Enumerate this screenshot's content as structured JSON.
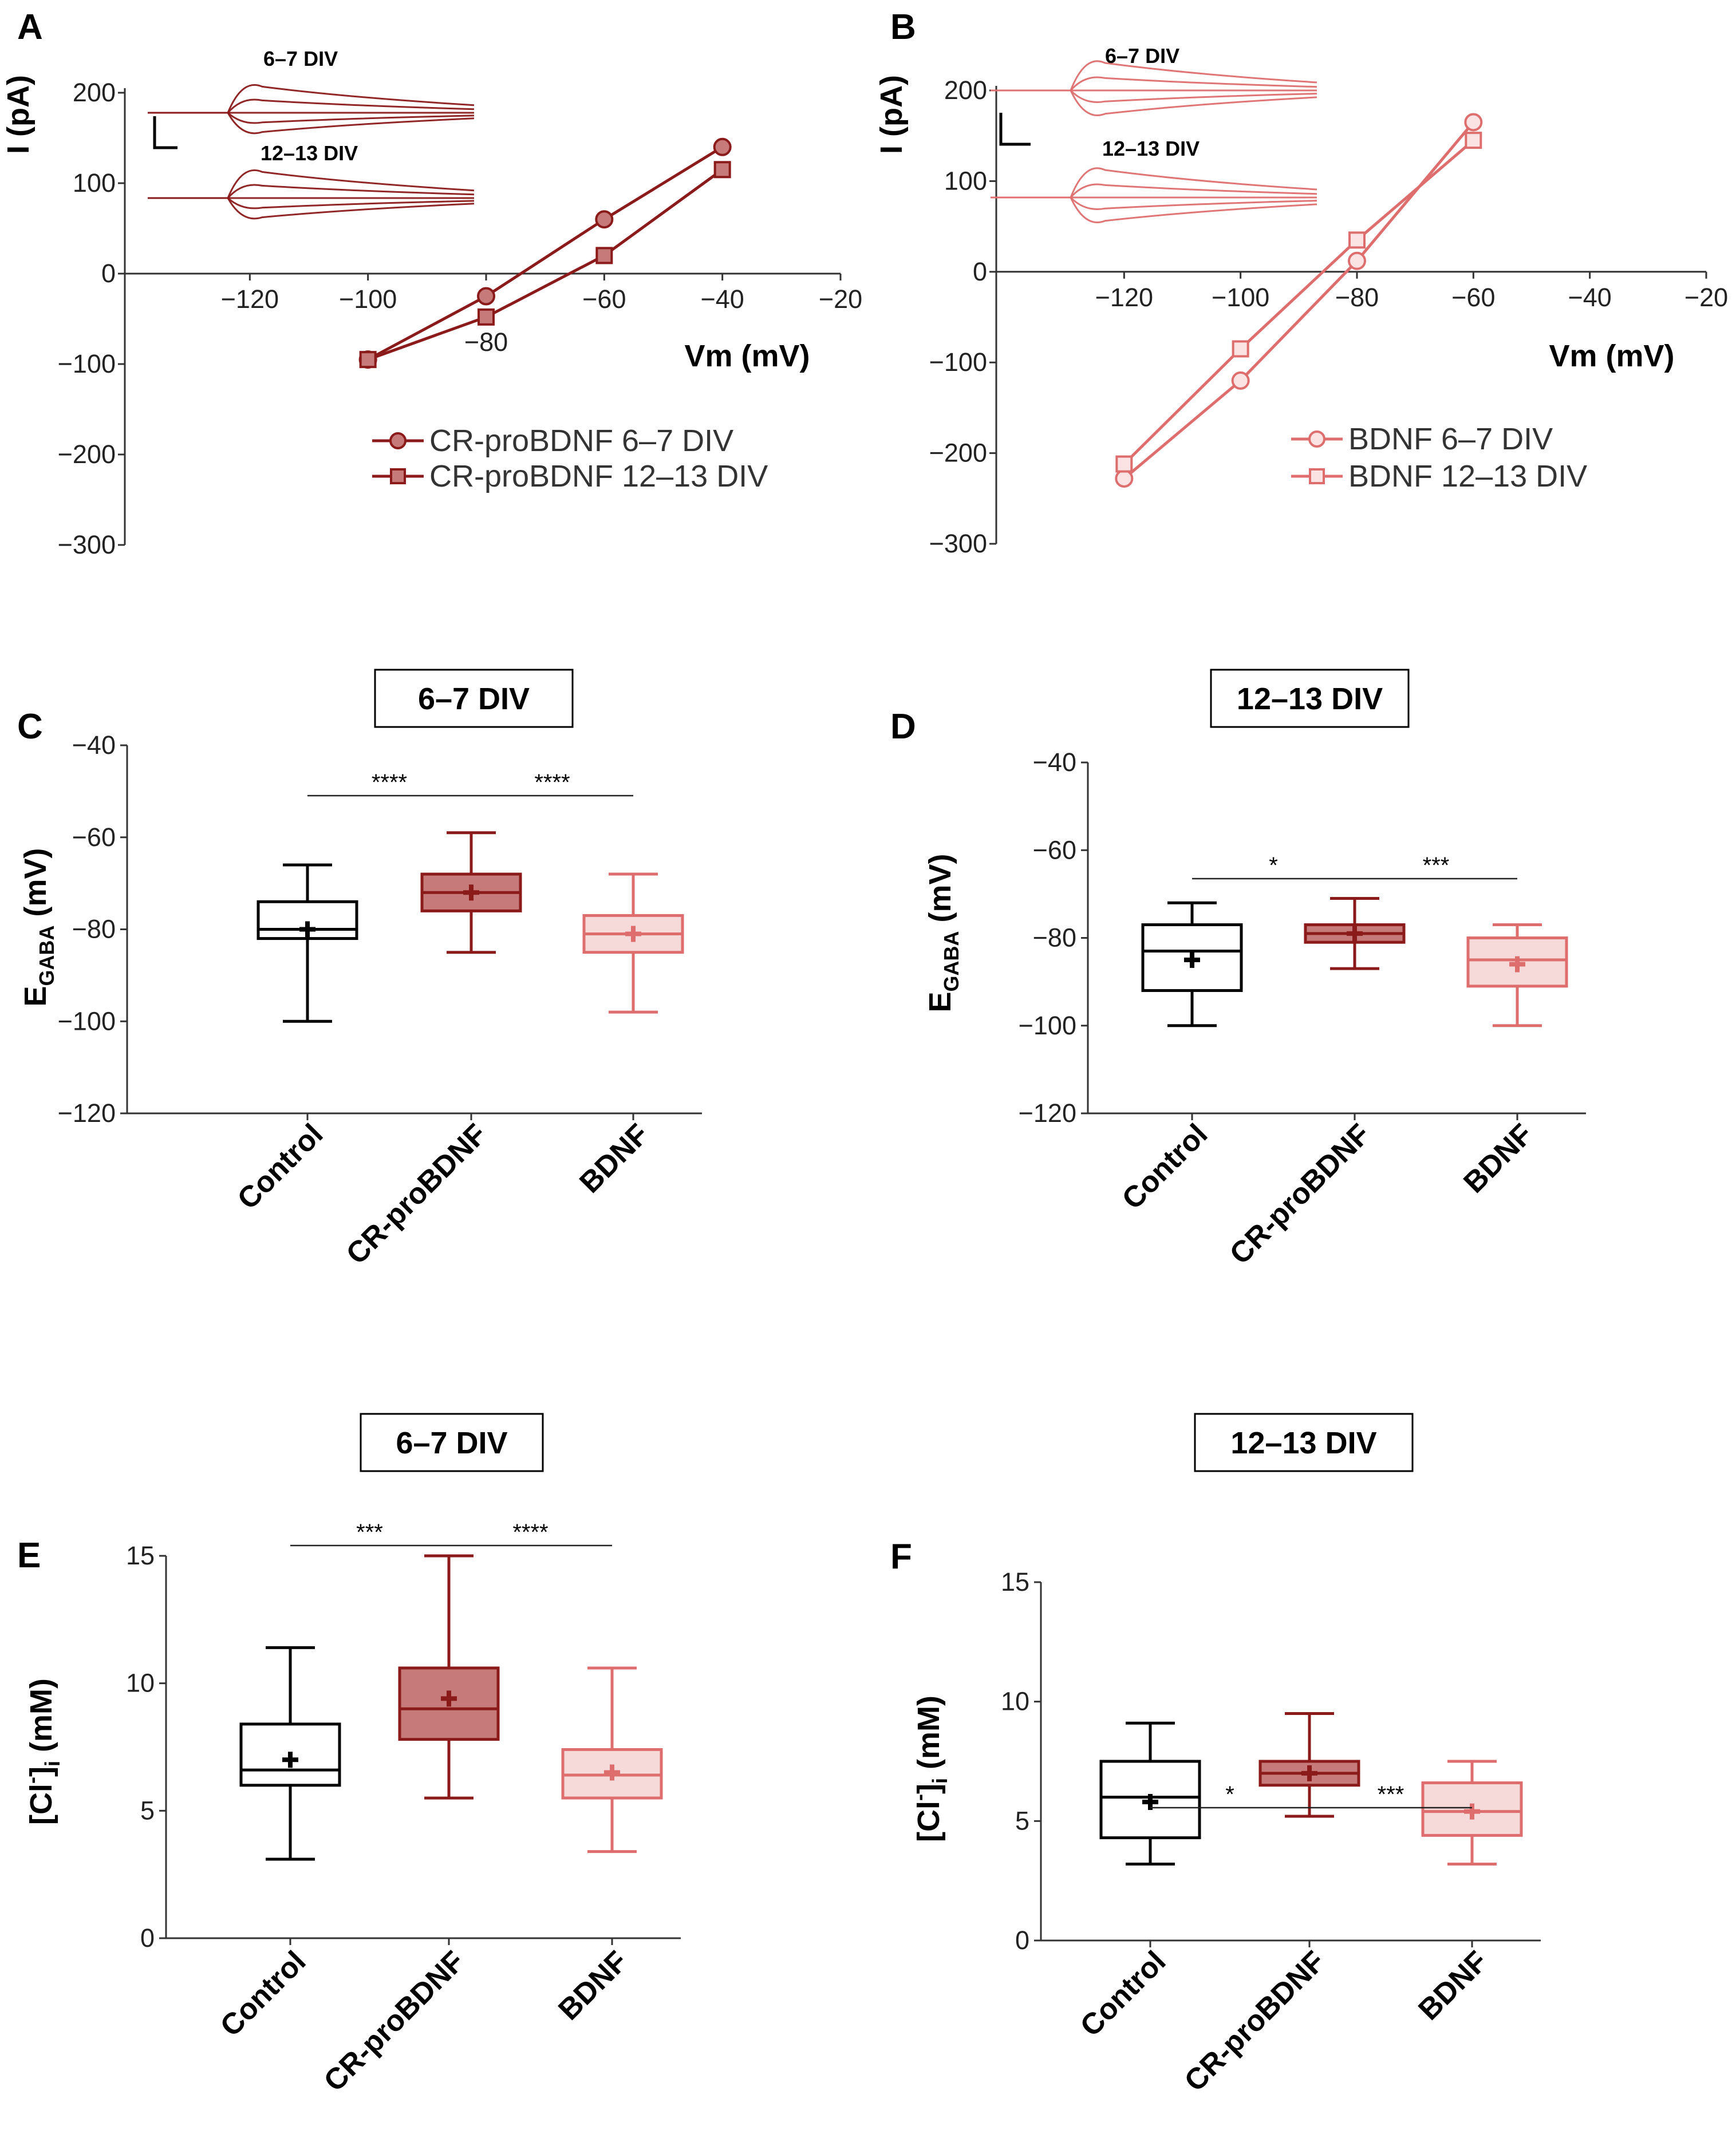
{
  "colors": {
    "control": "#000000",
    "crpro": "#8B1A1A",
    "crpro_fill": "#C77A7A",
    "bdnf": "#DE6E6E",
    "bdnf_fill": "#F6DADA",
    "black": "#000000"
  },
  "chart_data": [
    {
      "id": "A",
      "type": "line",
      "panel_label": "A",
      "xlabel": "Vm (mV)",
      "ylabel": "I (pA)",
      "xlim": [
        -140,
        -20
      ],
      "ylim": [
        -300,
        200
      ],
      "xticks": [
        -120,
        -100,
        -80,
        -60,
        -40,
        -20
      ],
      "yticks": [
        200,
        100,
        0,
        -100,
        -200,
        -300
      ],
      "series": [
        {
          "name": "CR-proBDNF 6–7 DIV",
          "marker": "circle",
          "x": [
            -100,
            -80,
            -60,
            -40
          ],
          "y": [
            -95,
            -25,
            60,
            140
          ]
        },
        {
          "name": "CR-proBDNF 12–13 DIV",
          "marker": "square",
          "x": [
            -100,
            -80,
            -60,
            -40
          ],
          "y": [
            -95,
            -48,
            20,
            115
          ]
        }
      ],
      "inset_labels": [
        "6–7 DIV",
        "12–13 DIV"
      ]
    },
    {
      "id": "B",
      "type": "line",
      "panel_label": "B",
      "xlabel": "Vm (mV)",
      "ylabel": "I (pA)",
      "xlim": [
        -140,
        -20
      ],
      "ylim": [
        -300,
        200
      ],
      "xticks": [
        -120,
        -100,
        -80,
        -60,
        -40,
        -20
      ],
      "yticks": [
        200,
        100,
        0,
        -100,
        -200,
        -300
      ],
      "series": [
        {
          "name": "BDNF 6–7 DIV",
          "marker": "circle",
          "x": [
            -120,
            -100,
            -80,
            -60
          ],
          "y": [
            -228,
            -120,
            12,
            165
          ]
        },
        {
          "name": "BDNF 12–13 DIV",
          "marker": "square",
          "x": [
            -120,
            -100,
            -80,
            -60
          ],
          "y": [
            -212,
            -85,
            35,
            145
          ]
        }
      ],
      "inset_labels": [
        "6–7 DIV",
        "12–13 DIV"
      ]
    },
    {
      "id": "C",
      "type": "box",
      "panel_label": "C",
      "header": "6–7 DIV",
      "ylabel_main": "E",
      "ylabel_sub": "GABA",
      "ylabel_unit": " (mV)",
      "ylim": [
        -120,
        -40
      ],
      "yticks": [
        -40,
        -60,
        -80,
        -100,
        -120
      ],
      "categories": [
        "Control",
        "CR-proBDNF",
        "BDNF"
      ],
      "boxes": [
        {
          "min": -100,
          "q1": -82,
          "median": -80,
          "q3": -74,
          "max": -66,
          "mean": -80
        },
        {
          "min": -85,
          "q1": -76,
          "median": -72,
          "q3": -68,
          "max": -59,
          "mean": -72
        },
        {
          "min": -98,
          "q1": -85,
          "median": -81,
          "q3": -77,
          "max": -68,
          "mean": -81
        }
      ],
      "significance": [
        {
          "from": 0,
          "to": 1,
          "label": "****"
        },
        {
          "from": 1,
          "to": 2,
          "label": "****"
        }
      ]
    },
    {
      "id": "D",
      "type": "box",
      "panel_label": "D",
      "header": "12–13 DIV",
      "ylabel_main": "E",
      "ylabel_sub": "GABA",
      "ylabel_unit": " (mV)",
      "ylim": [
        -120,
        -40
      ],
      "yticks": [
        -40,
        -60,
        -80,
        -100,
        -120
      ],
      "categories": [
        "Control",
        "CR-proBDNF",
        "BDNF"
      ],
      "boxes": [
        {
          "min": -100,
          "q1": -92,
          "median": -83,
          "q3": -77,
          "max": -72,
          "mean": -85
        },
        {
          "min": -87,
          "q1": -81,
          "median": -79,
          "q3": -77,
          "max": -71,
          "mean": -79
        },
        {
          "min": -100,
          "q1": -91,
          "median": -85,
          "q3": -80,
          "max": -77,
          "mean": -86
        }
      ],
      "significance": [
        {
          "from": 0,
          "to": 1,
          "label": "*"
        },
        {
          "from": 1,
          "to": 2,
          "label": "***"
        }
      ]
    },
    {
      "id": "E",
      "type": "box",
      "panel_label": "E",
      "header": "6–7 DIV",
      "ylabel_main": "[Cl",
      "ylabel_sup": "-",
      "ylabel_mid": "]",
      "ylabel_sub": "i",
      "ylabel_unit": " (mM)",
      "ylim": [
        0,
        15
      ],
      "yticks": [
        15,
        10,
        5,
        0
      ],
      "categories": [
        "Control",
        "CR-proBDNF",
        "BDNF"
      ],
      "boxes": [
        {
          "min": 3.1,
          "q1": 6.0,
          "median": 6.6,
          "q3": 8.4,
          "max": 11.4,
          "mean": 7.0
        },
        {
          "min": 5.5,
          "q1": 7.8,
          "median": 9.0,
          "q3": 10.6,
          "max": 15.0,
          "mean": 9.4
        },
        {
          "min": 3.4,
          "q1": 5.5,
          "median": 6.4,
          "q3": 7.4,
          "max": 10.6,
          "mean": 6.5
        }
      ],
      "significance": [
        {
          "from": 0,
          "to": 1,
          "label": "***"
        },
        {
          "from": 1,
          "to": 2,
          "label": "****"
        }
      ]
    },
    {
      "id": "F",
      "type": "box",
      "panel_label": "F",
      "header": "12–13 DIV",
      "ylabel_main": "[Cl",
      "ylabel_sup": "-",
      "ylabel_mid": "]",
      "ylabel_sub": "i",
      "ylabel_unit": " (mM)",
      "ylim": [
        0,
        15
      ],
      "yticks": [
        15,
        10,
        5,
        0
      ],
      "categories": [
        "Control",
        "CR-proBDNF",
        "BDNF"
      ],
      "boxes": [
        {
          "min": 3.2,
          "q1": 4.3,
          "median": 6.0,
          "q3": 7.5,
          "max": 9.1,
          "mean": 5.8
        },
        {
          "min": 5.2,
          "q1": 6.5,
          "median": 7.0,
          "q3": 7.5,
          "max": 9.5,
          "mean": 7.0
        },
        {
          "min": 3.2,
          "q1": 4.4,
          "median": 5.4,
          "q3": 6.6,
          "max": 7.5,
          "mean": 5.4
        }
      ],
      "significance": [
        {
          "from": 0,
          "to": 1,
          "label": "*"
        },
        {
          "from": 1,
          "to": 2,
          "label": "***"
        }
      ]
    }
  ]
}
